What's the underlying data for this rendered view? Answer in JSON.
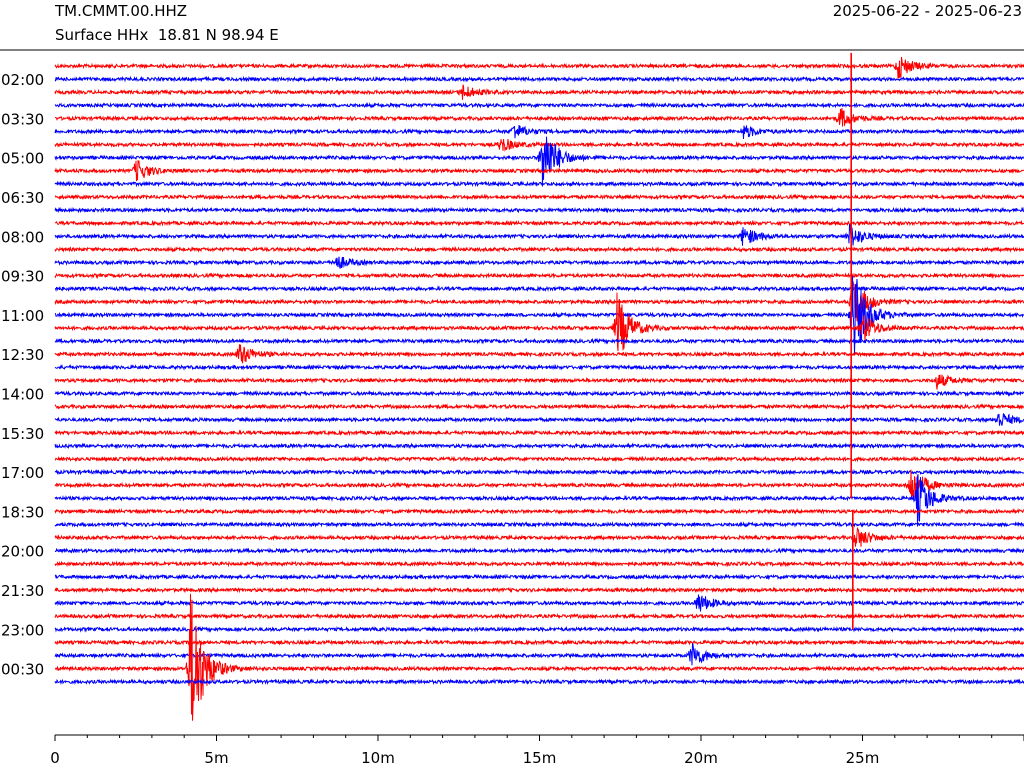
{
  "header": {
    "station": "TM.CMMT.00.HHZ",
    "subtitle": "Surface HHx  18.81 N 98.94 E",
    "date_range": "2025-06-22 - 2025-06-23"
  },
  "colors": {
    "trace_a": "#ff0000",
    "trace_b": "#0000ff",
    "axis": "#000000"
  },
  "chart_data": {
    "type": "line",
    "title": "TM.CMMT.00.HHZ",
    "xlabel": "",
    "ylabel": "",
    "x_unit": "minutes",
    "xlim": [
      0,
      30
    ],
    "x_ticks": [
      {
        "value": 0,
        "label": "0"
      },
      {
        "value": 5,
        "label": "5m"
      },
      {
        "value": 10,
        "label": "10m"
      },
      {
        "value": 15,
        "label": "15m"
      },
      {
        "value": 20,
        "label": "20m"
      },
      {
        "value": 25,
        "label": "25m"
      }
    ],
    "row_count": 48,
    "row_interval_minutes": 30,
    "row_colors": [
      "#ff0000",
      "#0000ff"
    ],
    "y_ticks": [
      {
        "row": 1,
        "label": "02:00"
      },
      {
        "row": 4,
        "label": "03:30"
      },
      {
        "row": 7,
        "label": "05:00"
      },
      {
        "row": 10,
        "label": "06:30"
      },
      {
        "row": 13,
        "label": "08:00"
      },
      {
        "row": 16,
        "label": "09:30"
      },
      {
        "row": 19,
        "label": "11:00"
      },
      {
        "row": 22,
        "label": "12:30"
      },
      {
        "row": 25,
        "label": "14:00"
      },
      {
        "row": 28,
        "label": "15:30"
      },
      {
        "row": 31,
        "label": "17:00"
      },
      {
        "row": 34,
        "label": "18:30"
      },
      {
        "row": 37,
        "label": "20:00"
      },
      {
        "row": 40,
        "label": "21:30"
      },
      {
        "row": 43,
        "label": "23:00"
      },
      {
        "row": 46,
        "label": "00:30"
      }
    ],
    "events": [
      {
        "row": 0,
        "minute": 26.1,
        "amplitude": 2.2
      },
      {
        "row": 2,
        "minute": 12.6,
        "amplitude": 1.3
      },
      {
        "row": 4,
        "minute": 24.3,
        "amplitude": 1.8
      },
      {
        "row": 5,
        "minute": 14.2,
        "amplitude": 1.4
      },
      {
        "row": 5,
        "minute": 21.3,
        "amplitude": 1.2
      },
      {
        "row": 6,
        "minute": 13.8,
        "amplitude": 1.3
      },
      {
        "row": 7,
        "minute": 15.1,
        "amplitude": 6.5
      },
      {
        "row": 8,
        "minute": 2.5,
        "amplitude": 2.0
      },
      {
        "row": 13,
        "minute": 21.3,
        "amplitude": 1.8
      },
      {
        "row": 13,
        "minute": 24.6,
        "amplitude": 2.0
      },
      {
        "row": 15,
        "minute": 8.7,
        "amplitude": 1.3
      },
      {
        "row": 18,
        "minute": 24.7,
        "amplitude": 4.5
      },
      {
        "row": 19,
        "minute": 24.7,
        "amplitude": 9.0
      },
      {
        "row": 20,
        "minute": 17.4,
        "amplitude": 6.0
      },
      {
        "row": 20,
        "minute": 25.0,
        "amplitude": 2.5
      },
      {
        "row": 22,
        "minute": 5.7,
        "amplitude": 2.0
      },
      {
        "row": 24,
        "minute": 27.3,
        "amplitude": 1.3
      },
      {
        "row": 27,
        "minute": 29.2,
        "amplitude": 1.5
      },
      {
        "row": 32,
        "minute": 26.5,
        "amplitude": 3.5
      },
      {
        "row": 33,
        "minute": 26.7,
        "amplitude": 4.5
      },
      {
        "row": 36,
        "minute": 24.8,
        "amplitude": 2.0
      },
      {
        "row": 41,
        "minute": 19.9,
        "amplitude": 1.8
      },
      {
        "row": 45,
        "minute": 19.7,
        "amplitude": 2.2
      },
      {
        "row": 46,
        "minute": 4.2,
        "amplitude": 14.0
      }
    ],
    "vertical_spikes": [
      {
        "minute": 24.65,
        "from_row": -1,
        "to_row": 33
      },
      {
        "minute": 24.7,
        "from_row": 34,
        "to_row": 43
      }
    ]
  }
}
